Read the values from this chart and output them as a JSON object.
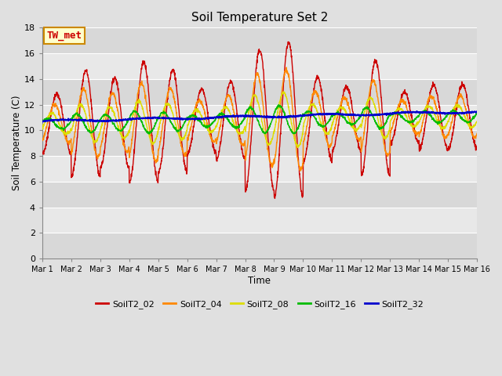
{
  "title": "Soil Temperature Set 2",
  "xlabel": "Time",
  "ylabel": "Soil Temperature (C)",
  "ylim": [
    0,
    18
  ],
  "xlim": [
    0,
    15
  ],
  "series": {
    "SoilT2_02": {
      "color": "#cc0000",
      "lw": 1.0
    },
    "SoilT2_04": {
      "color": "#ff8800",
      "lw": 1.0
    },
    "SoilT2_08": {
      "color": "#dddd00",
      "lw": 1.0
    },
    "SoilT2_16": {
      "color": "#00bb00",
      "lw": 1.0
    },
    "SoilT2_32": {
      "color": "#0000cc",
      "lw": 1.3
    }
  },
  "annotation": {
    "text": "TW_met",
    "color": "#cc0000",
    "bg": "#ffffcc",
    "border": "#cc8800",
    "fontsize": 9
  },
  "band_colors": [
    "#d8d8d8",
    "#e8e8e8"
  ],
  "grid_color": "#ffffff",
  "xtick_labels": [
    "Mar 1",
    "Mar 2",
    "Mar 3",
    "Mar 4",
    "Mar 5",
    "Mar 6",
    "Mar 7",
    "Mar 8",
    "Mar 9",
    "Mar 10",
    "Mar 11",
    "Mar 12",
    "Mar 13",
    "Mar 14",
    "Mar 15",
    "Mar 16"
  ],
  "ytick_vals": [
    0,
    2,
    4,
    6,
    8,
    10,
    12,
    14,
    16,
    18
  ]
}
